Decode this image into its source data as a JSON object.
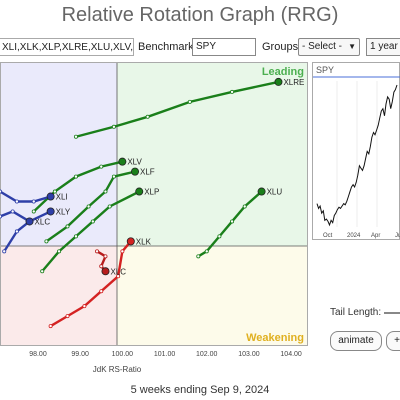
{
  "title": "Relative Rotation Graph (RRG)",
  "toolbar": {
    "symbols": "XLI,XLK,XLP,XLRE,XLU,XLV,XL",
    "benchmark_label": "Benchmark:",
    "benchmark": "SPY",
    "groups_label": "Groups:",
    "groups_value": "- Select -",
    "period_value": "1 year"
  },
  "quadrants": {
    "leading": "Leading",
    "weakening": "Weakening",
    "colors": {
      "leading": "#e8f7e8",
      "weakening": "#fdfbea",
      "lagging": "#fbeaea",
      "improving": "#eaeafb"
    }
  },
  "x_axis": {
    "label": "JdK RS-Ratio",
    "ticks": [
      "98.00",
      "99.00",
      "100.00",
      "101.00",
      "102.00",
      "103.00",
      "104.00"
    ]
  },
  "chart_data": {
    "type": "scatter",
    "xlabel": "JdK RS-Ratio",
    "xlim": [
      97.1,
      104.4
    ],
    "ylim": [
      97.5,
      103.2
    ],
    "center": [
      100,
      100
    ],
    "series": [
      {
        "name": "XLRE",
        "color": "#1a7f1a",
        "points": [
          [
            98.9,
            101.7
          ],
          [
            99.8,
            101.9
          ],
          [
            100.6,
            102.1
          ],
          [
            101.6,
            102.4
          ],
          [
            102.6,
            102.6
          ],
          [
            103.7,
            102.8
          ]
        ]
      },
      {
        "name": "XLV",
        "color": "#1a7f1a",
        "points": [
          [
            97.9,
            100.2
          ],
          [
            98.4,
            100.6
          ],
          [
            98.9,
            100.9
          ],
          [
            99.5,
            101.1
          ],
          [
            100.0,
            101.2
          ]
        ]
      },
      {
        "name": "XLF",
        "color": "#1a7f1a",
        "points": [
          [
            98.2,
            99.6
          ],
          [
            98.7,
            99.9
          ],
          [
            99.2,
            100.3
          ],
          [
            99.6,
            100.6
          ],
          [
            99.8,
            100.9
          ],
          [
            100.3,
            101.0
          ]
        ]
      },
      {
        "name": "XLP",
        "color": "#1a7f1a",
        "points": [
          [
            98.1,
            99.0
          ],
          [
            98.5,
            99.4
          ],
          [
            98.9,
            99.7
          ],
          [
            99.3,
            100.0
          ],
          [
            99.7,
            100.3
          ],
          [
            100.4,
            100.6
          ]
        ]
      },
      {
        "name": "XLU",
        "color": "#1a7f1a",
        "points": [
          [
            101.8,
            99.3
          ],
          [
            102.0,
            99.4
          ],
          [
            102.3,
            99.7
          ],
          [
            102.6,
            100.0
          ],
          [
            102.9,
            100.3
          ],
          [
            103.3,
            100.6
          ]
        ]
      },
      {
        "name": "XLI",
        "color": "#2e3fa8",
        "points": [
          [
            97.1,
            100.6
          ],
          [
            97.5,
            100.4
          ],
          [
            97.9,
            100.4
          ],
          [
            98.3,
            100.5
          ]
        ]
      },
      {
        "name": "XLY",
        "color": "#2e3fa8",
        "points": [
          [
            97.2,
            99.4
          ],
          [
            97.5,
            99.8
          ],
          [
            97.8,
            100.0
          ],
          [
            98.3,
            100.2
          ]
        ]
      },
      {
        "name": "XLC",
        "color": "#2e3fa8",
        "points": [
          [
            97.1,
            100.1
          ],
          [
            97.4,
            100.2
          ],
          [
            97.8,
            100.0
          ]
        ]
      },
      {
        "name": "XLK",
        "color": "#d42222",
        "points": [
          [
            98.3,
            97.9
          ],
          [
            98.7,
            98.1
          ],
          [
            99.1,
            98.3
          ],
          [
            99.5,
            98.6
          ],
          [
            99.9,
            98.9
          ],
          [
            100.0,
            99.4
          ],
          [
            100.2,
            99.6
          ]
        ]
      },
      {
        "name": "XLC",
        "color": "#b71c1c",
        "points": [
          [
            99.4,
            99.4
          ],
          [
            99.6,
            99.3
          ],
          [
            99.5,
            99.1
          ],
          [
            99.6,
            99.0
          ]
        ]
      }
    ]
  },
  "spy_panel": {
    "symbol": "SPY",
    "x_labels": [
      "Oct",
      "2024",
      "Apr",
      "Jul"
    ],
    "values": [
      1,
      0.8,
      0.9,
      0.6,
      0.7,
      0.3,
      0.35,
      0.25,
      0.1,
      0.3,
      0.2,
      0.5,
      0.6,
      0.75,
      0.85,
      0.8,
      0.9,
      1.0,
      0.95,
      1.1,
      1.3,
      1.5,
      1.7,
      1.8,
      1.7,
      1.9,
      2.2,
      2.6,
      2.5,
      2.4,
      2.6,
      2.9,
      3.2,
      3.1,
      3.4,
      3.8,
      4.0,
      3.9,
      4.1,
      4.3,
      4.6,
      4.9,
      5.0,
      4.7,
      5.2,
      5.5,
      5.4,
      5.0,
      5.3,
      5.7,
      5.8,
      6.0
    ]
  },
  "controls": {
    "tail_length_label": "Tail Length:",
    "animate_label": "animate",
    "extra_label": "+"
  },
  "footer": "5 weeks ending Sep 9, 2024"
}
